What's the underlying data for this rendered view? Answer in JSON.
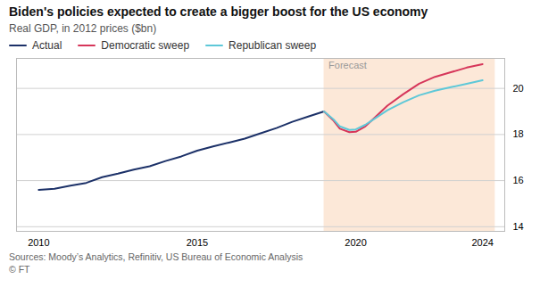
{
  "chart_data": {
    "type": "line",
    "title": "Biden's policies expected to create a bigger boost for the US economy",
    "subtitle": "Real GDP, in 2012 prices ($bn)",
    "source": "Sources: Moody’s Analytics, Refinitiv, US Bureau of Economic Analysis",
    "copyright": "© FT",
    "series": [
      {
        "name": "Actual",
        "color": "#1c3168",
        "x": [
          2010,
          2010.5,
          2011,
          2011.5,
          2012,
          2012.5,
          2013,
          2013.5,
          2014,
          2014.5,
          2015,
          2015.5,
          2016,
          2016.5,
          2017,
          2017.5,
          2018,
          2018.5,
          2019
        ],
        "values": [
          15.6,
          15.65,
          15.78,
          15.9,
          16.15,
          16.3,
          16.48,
          16.62,
          16.85,
          17.05,
          17.3,
          17.48,
          17.65,
          17.82,
          18.05,
          18.28,
          18.55,
          18.78,
          19.0
        ]
      },
      {
        "name": "Democratic sweep",
        "color": "#d6365a",
        "x": [
          2019,
          2019.3,
          2019.5,
          2019.8,
          2020,
          2020.3,
          2020.5,
          2021,
          2021.5,
          2022,
          2022.5,
          2023,
          2023.5,
          2024
        ],
        "values": [
          19.0,
          18.6,
          18.25,
          18.1,
          18.12,
          18.35,
          18.6,
          19.25,
          19.75,
          20.2,
          20.5,
          20.7,
          20.9,
          21.05
        ]
      },
      {
        "name": "Republican sweep",
        "color": "#5ec8d8",
        "x": [
          2019,
          2019.3,
          2019.5,
          2019.8,
          2020,
          2020.3,
          2020.5,
          2021,
          2021.5,
          2022,
          2022.5,
          2023,
          2023.5,
          2024
        ],
        "values": [
          19.0,
          18.65,
          18.35,
          18.2,
          18.22,
          18.42,
          18.6,
          19.05,
          19.4,
          19.7,
          19.9,
          20.05,
          20.2,
          20.35
        ]
      }
    ],
    "forecast": {
      "start": 2019.0,
      "end": 2024.4,
      "label": "Forecast",
      "color": "#fce8d8"
    },
    "xlim": [
      2009.3,
      2024.7
    ],
    "ylim": [
      13.8,
      21.3
    ],
    "xticks": [
      2010,
      2015,
      2020,
      2024
    ],
    "yticks": [
      14,
      16,
      18,
      20
    ],
    "grid": true,
    "legend": "top"
  }
}
